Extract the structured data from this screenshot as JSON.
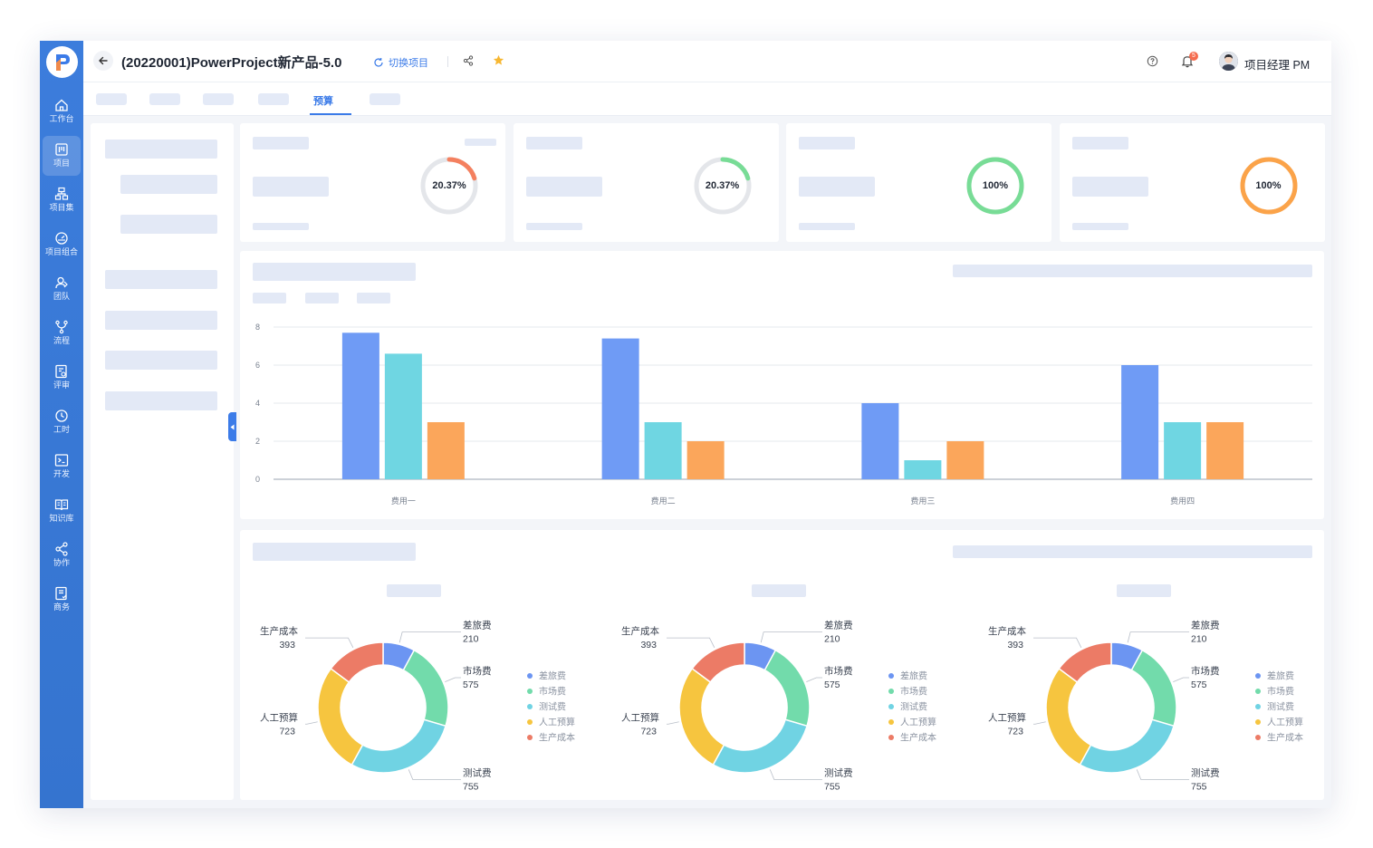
{
  "header": {
    "project_title": "(20220001)PowerProject新产品-5.0",
    "switch_label": "切换项目",
    "notification_count": "5",
    "user_name": "项目经理 PM"
  },
  "sidebar": {
    "items": [
      {
        "label": "工作台",
        "icon": "home-icon"
      },
      {
        "label": "项目",
        "icon": "project-icon"
      },
      {
        "label": "项目集",
        "icon": "program-icon"
      },
      {
        "label": "项目组合",
        "icon": "portfolio-icon"
      },
      {
        "label": "团队",
        "icon": "team-icon"
      },
      {
        "label": "流程",
        "icon": "flow-icon"
      },
      {
        "label": "评审",
        "icon": "review-icon"
      },
      {
        "label": "工时",
        "icon": "clock-icon"
      },
      {
        "label": "开发",
        "icon": "terminal-icon"
      },
      {
        "label": "知识库",
        "icon": "book-icon"
      },
      {
        "label": "协作",
        "icon": "share-icon"
      },
      {
        "label": "商务",
        "icon": "business-icon"
      }
    ]
  },
  "tabs": {
    "active_label": "预算"
  },
  "kpi_cards": [
    {
      "percent_label": "20.37%",
      "progress": 0.2037,
      "color": "#f4805f"
    },
    {
      "percent_label": "20.37%",
      "progress": 0.2037,
      "color": "#78dc96"
    },
    {
      "percent_label": "100%",
      "progress": 1.0,
      "color": "#78dc96"
    },
    {
      "percent_label": "100%",
      "progress": 1.0,
      "color": "#fba349"
    }
  ],
  "chart_data": [
    {
      "type": "bar",
      "categories": [
        "费用一",
        "费用二",
        "费用三",
        "费用四"
      ],
      "series": [
        {
          "values": [
            7.7,
            7.4,
            4.0,
            6.0
          ],
          "color": "#6f9bf5"
        },
        {
          "values": [
            6.6,
            3.0,
            1.0,
            3.0
          ],
          "color": "#6fd6e2"
        },
        {
          "values": [
            3.0,
            2.0,
            2.0,
            3.0
          ],
          "color": "#fba65b"
        }
      ],
      "ylim": [
        0,
        8
      ],
      "yticks": [
        "0",
        "2",
        "4",
        "6",
        "8"
      ],
      "grid": true
    },
    {
      "type": "pie",
      "slices": [
        {
          "label": "差旅费",
          "value": 210,
          "color": "#6c95f2"
        },
        {
          "label": "市场费",
          "value": 575,
          "color": "#72dbab"
        },
        {
          "label": "测试费",
          "value": 755,
          "color": "#70d3e3"
        },
        {
          "label": "人工预算",
          "value": 723,
          "color": "#f6c53f"
        },
        {
          "label": "生产成本",
          "value": 393,
          "color": "#ec7b66"
        }
      ],
      "legend": [
        "差旅费",
        "市场费",
        "测试费",
        "人工预算",
        "生产成本"
      ]
    },
    {
      "type": "pie",
      "slices": [
        {
          "label": "差旅费",
          "value": 210,
          "color": "#6c95f2"
        },
        {
          "label": "市场费",
          "value": 575,
          "color": "#72dbab"
        },
        {
          "label": "测试费",
          "value": 755,
          "color": "#70d3e3"
        },
        {
          "label": "人工预算",
          "value": 723,
          "color": "#f6c53f"
        },
        {
          "label": "生产成本",
          "value": 393,
          "color": "#ec7b66"
        }
      ],
      "legend": [
        "差旅费",
        "市场费",
        "测试费",
        "人工预算",
        "生产成本"
      ]
    },
    {
      "type": "pie",
      "slices": [
        {
          "label": "差旅费",
          "value": 210,
          "color": "#6c95f2"
        },
        {
          "label": "市场费",
          "value": 575,
          "color": "#72dbab"
        },
        {
          "label": "测试费",
          "value": 755,
          "color": "#70d3e3"
        },
        {
          "label": "人工预算",
          "value": 723,
          "color": "#f6c53f"
        },
        {
          "label": "生产成本",
          "value": 393,
          "color": "#ec7b66"
        }
      ],
      "legend": [
        "差旅费",
        "市场费",
        "测试费",
        "人工预算",
        "生产成本"
      ]
    }
  ]
}
